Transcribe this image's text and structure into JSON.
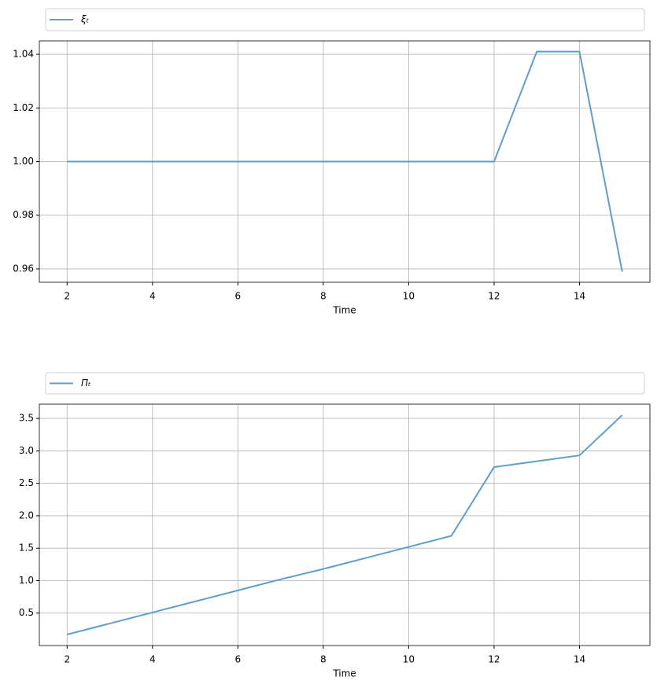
{
  "chart_data": [
    {
      "type": "line",
      "xlabel": "Time",
      "x": [
        2,
        3,
        4,
        5,
        6,
        7,
        8,
        9,
        10,
        11,
        12,
        13,
        14,
        15
      ],
      "series": [
        {
          "name": "ξₜ",
          "color": "#5f9ec9",
          "values": [
            1.0,
            1.0,
            1.0,
            1.0,
            1.0,
            1.0,
            1.0,
            1.0,
            1.0,
            1.0,
            1.0,
            1.041,
            1.041,
            0.959
          ]
        }
      ],
      "xlim": [
        1.35,
        15.65
      ],
      "xticks": [
        2,
        4,
        6,
        8,
        10,
        12,
        14
      ],
      "ylim": [
        0.955,
        1.045
      ],
      "yticks": [
        0.96,
        0.98,
        {
          "value": 1,
          "label": "1.00"
        },
        1.02,
        1.04
      ],
      "grid": true,
      "legend": "top"
    },
    {
      "type": "line",
      "xlabel": "Time",
      "x": [
        2,
        3,
        4,
        5,
        6,
        7,
        8,
        9,
        10,
        11,
        12,
        13,
        14,
        15
      ],
      "series": [
        {
          "name": "Πₜ",
          "color": "#5f9ec9",
          "values": [
            0.17,
            0.34,
            0.51,
            0.68,
            0.85,
            1.02,
            1.18,
            1.35,
            1.52,
            1.69,
            2.75,
            2.84,
            2.93,
            3.55
          ]
        }
      ],
      "xlim": [
        1.35,
        15.65
      ],
      "xticks": [
        2,
        4,
        6,
        8,
        10,
        12,
        14
      ],
      "ylim": [
        0.0,
        3.72
      ],
      "yticks": [
        0.5,
        {
          "value": 1,
          "label": "1.0"
        },
        1.5,
        {
          "value": 2,
          "label": "2.0"
        },
        2.5,
        {
          "value": 3,
          "label": "3.0"
        },
        3.5
      ],
      "grid": true,
      "legend": "top"
    }
  ]
}
